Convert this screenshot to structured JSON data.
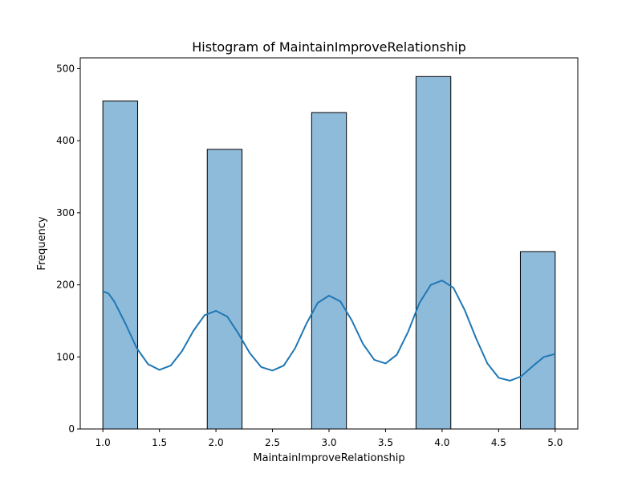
{
  "chart_data": {
    "type": "bar",
    "title": "Histogram of MaintainImproveRelationship",
    "xlabel": "MaintainImproveRelationship",
    "ylabel": "Frequency",
    "xlim": [
      0.8,
      5.2
    ],
    "ylim": [
      0,
      515
    ],
    "xticks": [
      1.0,
      1.5,
      2.0,
      2.5,
      3.0,
      3.5,
      4.0,
      4.5,
      5.0
    ],
    "xtick_labels": [
      "1.0",
      "1.5",
      "2.0",
      "2.5",
      "3.0",
      "3.5",
      "4.0",
      "4.5",
      "5.0"
    ],
    "yticks": [
      0,
      100,
      200,
      300,
      400,
      500
    ],
    "ytick_labels": [
      "0",
      "100",
      "200",
      "300",
      "400",
      "500"
    ],
    "grid": false,
    "bars": [
      {
        "x_start": 1.0,
        "x_end": 1.3077,
        "value": 455
      },
      {
        "x_start": 1.9231,
        "x_end": 2.2308,
        "value": 388
      },
      {
        "x_start": 2.8462,
        "x_end": 3.1538,
        "value": 439
      },
      {
        "x_start": 3.7692,
        "x_end": 4.0769,
        "value": 489
      },
      {
        "x_start": 4.6923,
        "x_end": 5.0,
        "value": 246
      }
    ],
    "bar_color": "#8fbbda",
    "bar_edge_color": "#000000",
    "kde": {
      "color": "#1f77b4",
      "x": [
        1.0,
        1.05,
        1.1,
        1.2,
        1.3,
        1.4,
        1.5,
        1.6,
        1.7,
        1.8,
        1.9,
        2.0,
        2.1,
        2.2,
        2.3,
        2.4,
        2.5,
        2.6,
        2.7,
        2.8,
        2.9,
        3.0,
        3.1,
        3.2,
        3.3,
        3.4,
        3.5,
        3.6,
        3.7,
        3.8,
        3.9,
        4.0,
        4.1,
        4.2,
        4.3,
        4.4,
        4.5,
        4.6,
        4.7,
        4.8,
        4.9,
        5.0
      ],
      "y": [
        191,
        188,
        177,
        146,
        112,
        90,
        82,
        88,
        108,
        136,
        158,
        164,
        156,
        132,
        105,
        86,
        81,
        88,
        112,
        146,
        175,
        185,
        177,
        151,
        118,
        96,
        91,
        103,
        135,
        175,
        200,
        206,
        196,
        165,
        126,
        91,
        71,
        67,
        73,
        87,
        100,
        104
      ]
    }
  }
}
